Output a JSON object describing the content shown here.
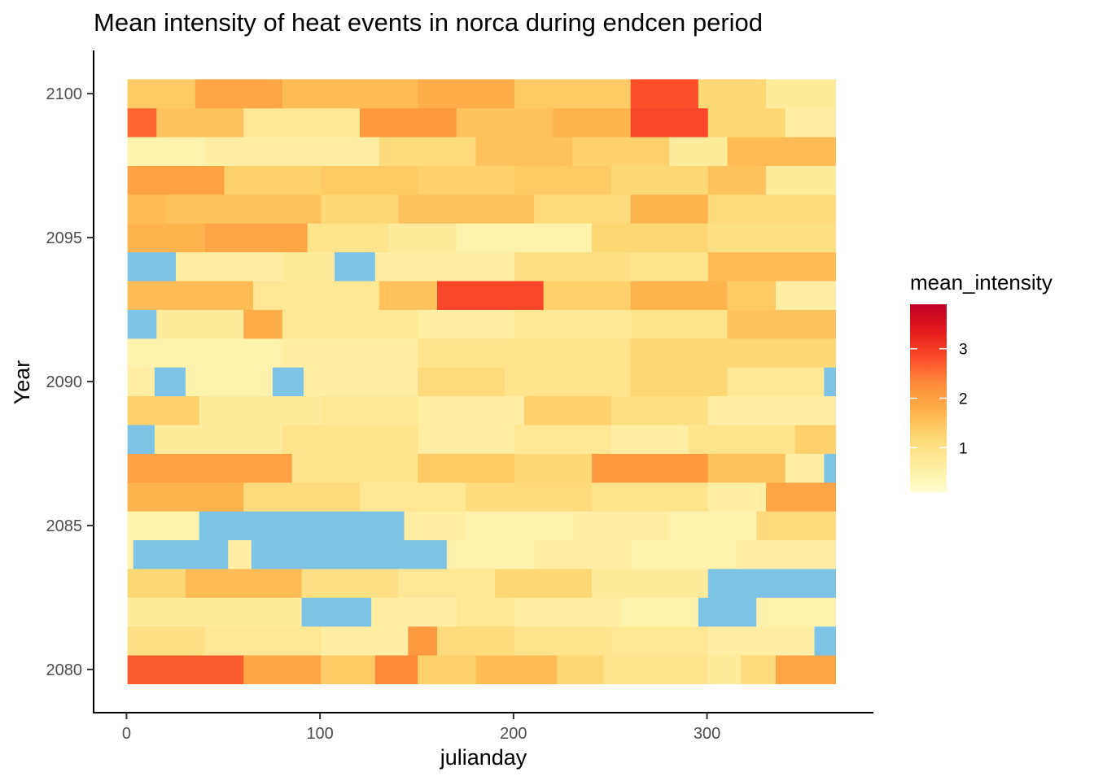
{
  "chart_data": {
    "type": "heatmap",
    "title": "Mean intensity of heat events in norca during endcen period",
    "xlabel": "julianday",
    "ylabel": "Year",
    "xlim": [
      -17,
      386
    ],
    "ylim": [
      2078.5,
      2101.5
    ],
    "x_range": [
      1,
      366
    ],
    "y_range": [
      2080,
      2100
    ],
    "x_ticks": [
      "0",
      "100",
      "200",
      "300"
    ],
    "y_ticks": [
      "2080",
      "2085",
      "2090",
      "2095",
      "2100"
    ],
    "grid": false,
    "missing_color": "#7cc3e6",
    "color_scale": {
      "name": "mean_intensity",
      "min": 0.1,
      "max": 3.9,
      "ticks": [
        "1",
        "2",
        "3"
      ],
      "colors": [
        "#ffffcc",
        "#ffeda0",
        "#fed976",
        "#feb24c",
        "#fd8d3c",
        "#fc4e2a",
        "#e31a1c",
        "#bd0026"
      ]
    },
    "rows": [
      {
        "year": 2080,
        "segments": [
          [
            1,
            60,
            2.7
          ],
          [
            61,
            100,
            1.9
          ],
          [
            101,
            128,
            1.4
          ],
          [
            129,
            150,
            2.3
          ],
          [
            151,
            180,
            1.3
          ],
          [
            181,
            222,
            1.6
          ],
          [
            223,
            246,
            1.2
          ],
          [
            247,
            300,
            0.9
          ],
          [
            301,
            317,
            0.7
          ],
          [
            318,
            335,
            1.1
          ],
          [
            336,
            366,
            1.9
          ]
        ]
      },
      {
        "year": 2081,
        "segments": [
          [
            1,
            40,
            1.0
          ],
          [
            41,
            100,
            0.8
          ],
          [
            101,
            145,
            0.6
          ],
          [
            146,
            160,
            2.1
          ],
          [
            161,
            200,
            1.1
          ],
          [
            201,
            250,
            0.9
          ],
          [
            251,
            300,
            0.8
          ],
          [
            301,
            355,
            0.6
          ],
          [
            356,
            366,
            null
          ]
        ]
      },
      {
        "year": 2082,
        "segments": [
          [
            1,
            90,
            0.7
          ],
          [
            91,
            126,
            null
          ],
          [
            127,
            170,
            0.6
          ],
          [
            171,
            200,
            0.8
          ],
          [
            201,
            255,
            0.6
          ],
          [
            256,
            295,
            0.5
          ],
          [
            296,
            325,
            null
          ],
          [
            326,
            366,
            0.5
          ]
        ]
      },
      {
        "year": 2083,
        "segments": [
          [
            1,
            30,
            1.2
          ],
          [
            31,
            90,
            1.6
          ],
          [
            91,
            140,
            1.0
          ],
          [
            141,
            190,
            0.8
          ],
          [
            191,
            240,
            1.2
          ],
          [
            241,
            300,
            0.7
          ],
          [
            301,
            366,
            null
          ]
        ]
      },
      {
        "year": 2084,
        "segments": [
          [
            1,
            3,
            0.5
          ],
          [
            4,
            52,
            null
          ],
          [
            53,
            64,
            0.6
          ],
          [
            65,
            165,
            null
          ],
          [
            166,
            210,
            0.5
          ],
          [
            211,
            260,
            0.6
          ],
          [
            261,
            315,
            0.5
          ],
          [
            316,
            366,
            0.6
          ]
        ]
      },
      {
        "year": 2085,
        "segments": [
          [
            1,
            37,
            0.5
          ],
          [
            38,
            143,
            null
          ],
          [
            144,
            175,
            0.6
          ],
          [
            176,
            230,
            0.5
          ],
          [
            231,
            280,
            0.6
          ],
          [
            281,
            325,
            0.5
          ],
          [
            326,
            366,
            1.1
          ]
        ]
      },
      {
        "year": 2086,
        "segments": [
          [
            1,
            60,
            1.7
          ],
          [
            61,
            120,
            1.1
          ],
          [
            121,
            175,
            0.8
          ],
          [
            176,
            240,
            1.1
          ],
          [
            241,
            300,
            0.9
          ],
          [
            301,
            330,
            0.6
          ],
          [
            331,
            366,
            1.9
          ]
        ]
      },
      {
        "year": 2087,
        "segments": [
          [
            1,
            85,
            2.0
          ],
          [
            86,
            150,
            0.9
          ],
          [
            151,
            200,
            1.4
          ],
          [
            201,
            240,
            1.2
          ],
          [
            241,
            300,
            2.1
          ],
          [
            301,
            340,
            1.5
          ],
          [
            341,
            360,
            0.6
          ],
          [
            361,
            366,
            null
          ]
        ]
      },
      {
        "year": 2088,
        "segments": [
          [
            1,
            14,
            null
          ],
          [
            15,
            80,
            0.7
          ],
          [
            81,
            150,
            0.9
          ],
          [
            151,
            200,
            0.6
          ],
          [
            201,
            250,
            0.8
          ],
          [
            251,
            290,
            0.6
          ],
          [
            291,
            345,
            0.9
          ],
          [
            346,
            366,
            1.3
          ]
        ]
      },
      {
        "year": 2089,
        "segments": [
          [
            1,
            37,
            1.3
          ],
          [
            38,
            100,
            0.7
          ],
          [
            101,
            150,
            0.8
          ],
          [
            151,
            205,
            0.6
          ],
          [
            206,
            250,
            1.3
          ],
          [
            251,
            300,
            1.0
          ],
          [
            301,
            366,
            0.6
          ]
        ]
      },
      {
        "year": 2090,
        "segments": [
          [
            1,
            14,
            0.6
          ],
          [
            15,
            30,
            null
          ],
          [
            31,
            75,
            0.5
          ],
          [
            76,
            91,
            null
          ],
          [
            92,
            150,
            0.6
          ],
          [
            151,
            195,
            1.1
          ],
          [
            196,
            260,
            0.9
          ],
          [
            261,
            310,
            1.2
          ],
          [
            311,
            360,
            0.8
          ],
          [
            361,
            366,
            null
          ]
        ]
      },
      {
        "year": 2091,
        "segments": [
          [
            1,
            80,
            0.5
          ],
          [
            81,
            150,
            0.6
          ],
          [
            151,
            200,
            0.9
          ],
          [
            201,
            260,
            0.9
          ],
          [
            261,
            310,
            1.2
          ],
          [
            311,
            366,
            1.2
          ]
        ]
      },
      {
        "year": 2092,
        "segments": [
          [
            1,
            15,
            null
          ],
          [
            16,
            60,
            0.7
          ],
          [
            61,
            80,
            1.8
          ],
          [
            81,
            150,
            0.8
          ],
          [
            151,
            200,
            0.6
          ],
          [
            201,
            260,
            0.8
          ],
          [
            261,
            310,
            0.9
          ],
          [
            311,
            366,
            1.5
          ]
        ]
      },
      {
        "year": 2093,
        "segments": [
          [
            1,
            65,
            1.6
          ],
          [
            66,
            130,
            0.8
          ],
          [
            131,
            160,
            1.5
          ],
          [
            161,
            215,
            2.9
          ],
          [
            216,
            260,
            1.3
          ],
          [
            261,
            310,
            1.7
          ],
          [
            311,
            335,
            1.4
          ],
          [
            336,
            366,
            0.6
          ]
        ]
      },
      {
        "year": 2094,
        "segments": [
          [
            1,
            5,
            null
          ],
          [
            6,
            25,
            null
          ],
          [
            26,
            80,
            0.6
          ],
          [
            81,
            107,
            0.7
          ],
          [
            108,
            128,
            null
          ],
          [
            129,
            200,
            0.6
          ],
          [
            201,
            260,
            1.0
          ],
          [
            261,
            300,
            0.9
          ],
          [
            301,
            366,
            1.6
          ]
        ]
      },
      {
        "year": 2095,
        "segments": [
          [
            1,
            40,
            1.7
          ],
          [
            41,
            93,
            1.9
          ],
          [
            94,
            135,
            0.9
          ],
          [
            136,
            170,
            0.7
          ],
          [
            171,
            240,
            0.5
          ],
          [
            241,
            300,
            1.2
          ],
          [
            301,
            366,
            1.0
          ]
        ]
      },
      {
        "year": 2096,
        "segments": [
          [
            1,
            20,
            1.6
          ],
          [
            21,
            100,
            1.5
          ],
          [
            101,
            140,
            1.2
          ],
          [
            141,
            210,
            1.5
          ],
          [
            211,
            260,
            1.1
          ],
          [
            261,
            300,
            1.7
          ],
          [
            301,
            366,
            1.1
          ]
        ]
      },
      {
        "year": 2097,
        "segments": [
          [
            1,
            50,
            2.0
          ],
          [
            51,
            100,
            1.3
          ],
          [
            101,
            150,
            1.4
          ],
          [
            151,
            200,
            1.3
          ],
          [
            201,
            250,
            1.4
          ],
          [
            251,
            300,
            1.2
          ],
          [
            301,
            330,
            1.5
          ],
          [
            331,
            366,
            0.7
          ]
        ]
      },
      {
        "year": 2098,
        "segments": [
          [
            1,
            40,
            0.5
          ],
          [
            41,
            130,
            0.6
          ],
          [
            131,
            180,
            1.1
          ],
          [
            181,
            230,
            1.5
          ],
          [
            231,
            280,
            1.3
          ],
          [
            281,
            310,
            0.7
          ],
          [
            311,
            366,
            1.6
          ]
        ]
      },
      {
        "year": 2099,
        "segments": [
          [
            1,
            15,
            2.6
          ],
          [
            16,
            60,
            1.5
          ],
          [
            61,
            120,
            0.8
          ],
          [
            121,
            170,
            2.1
          ],
          [
            171,
            220,
            1.5
          ],
          [
            221,
            260,
            1.7
          ],
          [
            261,
            300,
            2.9
          ],
          [
            301,
            340,
            1.2
          ],
          [
            341,
            366,
            0.6
          ]
        ]
      },
      {
        "year": 2100,
        "segments": [
          [
            1,
            35,
            1.4
          ],
          [
            36,
            80,
            1.9
          ],
          [
            81,
            150,
            1.6
          ],
          [
            151,
            200,
            1.8
          ],
          [
            201,
            260,
            1.4
          ],
          [
            261,
            295,
            2.8
          ],
          [
            296,
            330,
            1.2
          ],
          [
            331,
            366,
            0.7
          ]
        ]
      }
    ]
  }
}
